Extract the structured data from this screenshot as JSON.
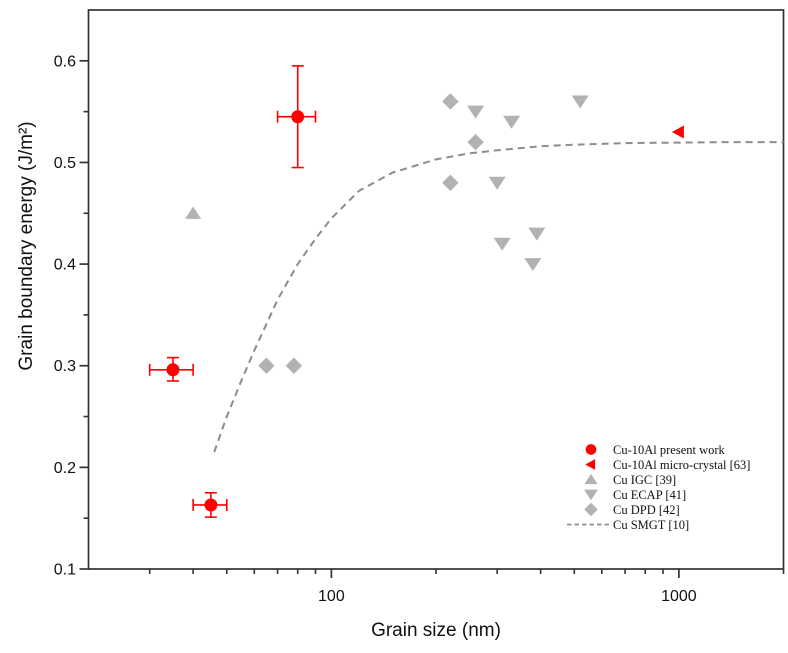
{
  "figure": {
    "background": "#ffffff",
    "axis_color": "#333333",
    "text_color": "#111111"
  },
  "chart_data": {
    "type": "scatter",
    "title": "",
    "xlabel": "Grain size (nm)",
    "ylabel": "Grain boundary energy (J/m²)",
    "grid": false,
    "legend_position": "lower-right",
    "x_axis": {
      "scale": "log",
      "min": 20,
      "max": 2000,
      "major_ticks": [
        100,
        1000
      ],
      "major_tick_labels": [
        "100",
        "1000"
      ],
      "minor_ticks": [
        30,
        40,
        50,
        60,
        70,
        80,
        90,
        200,
        300,
        400,
        500,
        600,
        700,
        800,
        900,
        2000
      ]
    },
    "y_axis": {
      "scale": "linear",
      "min": 0.1,
      "max": 0.65,
      "major_ticks": [
        0.1,
        0.2,
        0.3,
        0.4,
        0.5,
        0.6
      ],
      "major_tick_labels": [
        "0.1",
        "0.2",
        "0.3",
        "0.4",
        "0.5",
        "0.6"
      ],
      "minor_ticks": [
        0.15,
        0.25,
        0.35,
        0.45,
        0.55
      ]
    },
    "series": [
      {
        "name": "Cu-10Al present work",
        "marker": "circle",
        "color": "#FF0000",
        "points": [
          {
            "x": 80,
            "y": 0.545,
            "x_err_lo": 70,
            "x_err_hi": 90,
            "y_err_lo": 0.495,
            "y_err_hi": 0.595
          },
          {
            "x": 35,
            "y": 0.296,
            "x_err_lo": 30,
            "x_err_hi": 40,
            "y_err_lo": 0.285,
            "y_err_hi": 0.308
          },
          {
            "x": 45,
            "y": 0.163,
            "x_err_lo": 40,
            "x_err_hi": 50,
            "y_err_lo": 0.151,
            "y_err_hi": 0.175
          }
        ]
      },
      {
        "name": "Cu-10Al micro-crystal [63]",
        "marker": "triangle-left",
        "color": "#FF0000",
        "points": [
          {
            "x": 1000,
            "y": 0.53
          }
        ]
      },
      {
        "name": "Cu IGC [39]",
        "marker": "triangle-up",
        "color": "#B2B2B2",
        "points": [
          {
            "x": 40,
            "y": 0.45
          }
        ]
      },
      {
        "name": "Cu ECAP [41]",
        "marker": "triangle-down",
        "color": "#B2B2B2",
        "points": [
          {
            "x": 260,
            "y": 0.55
          },
          {
            "x": 330,
            "y": 0.54
          },
          {
            "x": 520,
            "y": 0.56
          },
          {
            "x": 300,
            "y": 0.48
          },
          {
            "x": 390,
            "y": 0.43
          },
          {
            "x": 310,
            "y": 0.42
          },
          {
            "x": 380,
            "y": 0.4
          }
        ]
      },
      {
        "name": "Cu DPD [42]",
        "marker": "diamond",
        "color": "#B2B2B2",
        "points": [
          {
            "x": 220,
            "y": 0.56
          },
          {
            "x": 260,
            "y": 0.52
          },
          {
            "x": 220,
            "y": 0.48
          },
          {
            "x": 65,
            "y": 0.3
          },
          {
            "x": 78,
            "y": 0.3
          }
        ]
      },
      {
        "name": "Cu SMGT [10]",
        "marker": "dashed-line",
        "color": "#8C8C8C",
        "curve": [
          [
            46,
            0.215
          ],
          [
            50,
            0.25
          ],
          [
            55,
            0.285
          ],
          [
            60,
            0.315
          ],
          [
            70,
            0.365
          ],
          [
            80,
            0.4
          ],
          [
            90,
            0.425
          ],
          [
            100,
            0.445
          ],
          [
            120,
            0.472
          ],
          [
            150,
            0.49
          ],
          [
            200,
            0.503
          ],
          [
            250,
            0.509
          ],
          [
            300,
            0.512
          ],
          [
            400,
            0.516
          ],
          [
            500,
            0.5175
          ],
          [
            700,
            0.519
          ],
          [
            1000,
            0.5195
          ],
          [
            1400,
            0.52
          ],
          [
            2000,
            0.52
          ]
        ]
      }
    ]
  }
}
